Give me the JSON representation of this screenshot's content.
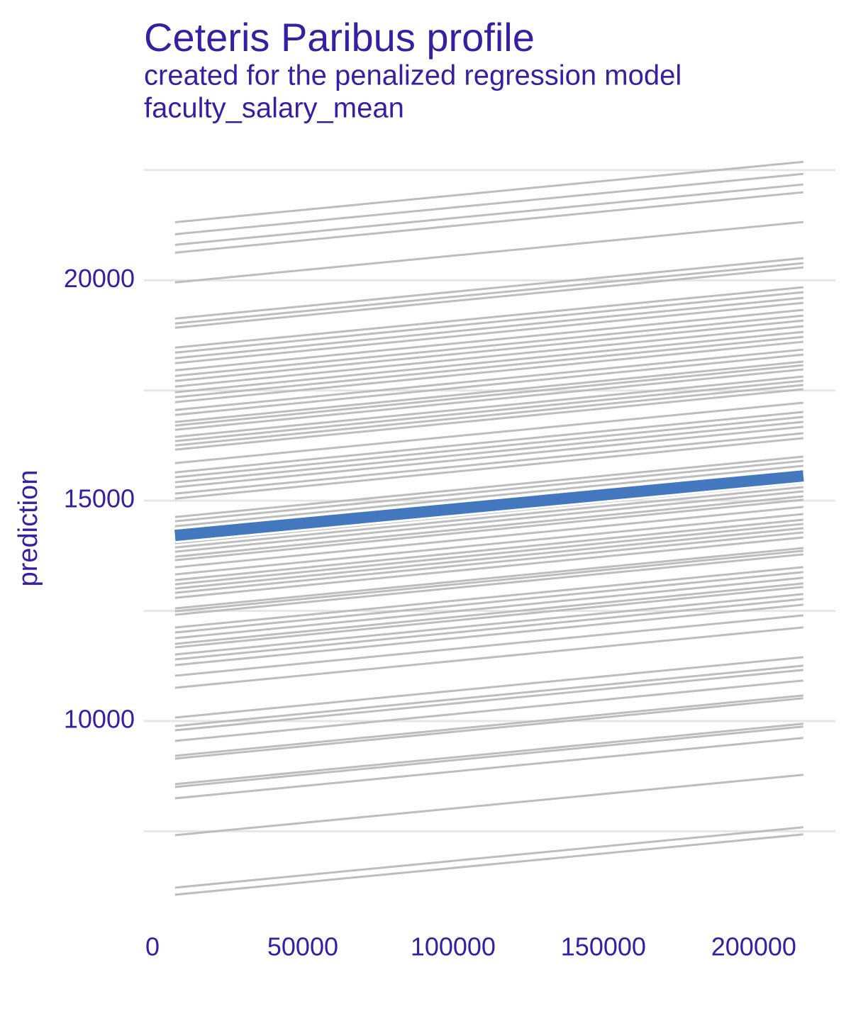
{
  "chart_data": {
    "type": "line",
    "title": "Ceteris Paribus profile",
    "subtitle": "created for the penalized regression model",
    "variable": "faculty_salary_mean",
    "ylabel": "prediction",
    "x": [
      7500,
      216500
    ],
    "xlim": [
      -2830,
      227170
    ],
    "xticks": [
      0,
      50000,
      100000,
      150000,
      200000
    ],
    "ylim": [
      5850,
      22740
    ],
    "yticks": [
      10000,
      15000,
      20000
    ],
    "yminor": [
      7500,
      12500,
      17500,
      22500
    ],
    "grid": true,
    "color": "#bdbdbd",
    "text_color": "#371ea3",
    "highlight": {
      "color": "#4378bf",
      "values": [
        14212,
        15563
      ]
    },
    "series": [
      {
        "values": [
          21318,
          22688
        ]
      },
      {
        "values": [
          21045,
          22415
        ]
      },
      {
        "values": [
          20804,
          22174
        ]
      },
      {
        "values": [
          20627,
          21997
        ]
      },
      {
        "values": [
          19952,
          21322
        ]
      },
      {
        "values": [
          19132,
          20502
        ]
      },
      {
        "values": [
          19019,
          20389
        ]
      },
      {
        "values": [
          18923,
          20293
        ]
      },
      {
        "values": [
          18473,
          19843
        ]
      },
      {
        "values": [
          18360,
          19730
        ]
      },
      {
        "values": [
          18232,
          19602
        ]
      },
      {
        "values": [
          18119,
          19489
        ]
      },
      {
        "values": [
          17958,
          19328
        ]
      },
      {
        "values": [
          17830,
          19200
        ]
      },
      {
        "values": [
          17717,
          19087
        ]
      },
      {
        "values": [
          17588,
          18958
        ]
      },
      {
        "values": [
          17460,
          18830
        ]
      },
      {
        "values": [
          17347,
          18717
        ]
      },
      {
        "values": [
          17235,
          18605
        ]
      },
      {
        "values": [
          17058,
          18428
        ]
      },
      {
        "values": [
          16945,
          18315
        ]
      },
      {
        "values": [
          16785,
          18155
        ]
      },
      {
        "values": [
          16704,
          18074
        ]
      },
      {
        "values": [
          16608,
          17978
        ]
      },
      {
        "values": [
          16447,
          17817
        ]
      },
      {
        "values": [
          16351,
          17721
        ]
      },
      {
        "values": [
          16254,
          17624
        ]
      },
      {
        "values": [
          16158,
          17528
        ]
      },
      {
        "values": [
          15852,
          17222
        ]
      },
      {
        "values": [
          15643,
          17013
        ]
      },
      {
        "values": [
          15531,
          16901
        ]
      },
      {
        "values": [
          15418,
          16788
        ]
      },
      {
        "values": [
          15306,
          16676
        ]
      },
      {
        "values": [
          15161,
          16531
        ]
      },
      {
        "values": [
          15048,
          16418
        ]
      },
      {
        "values": [
          14630,
          16000
        ]
      },
      {
        "values": [
          14534,
          15904
        ]
      },
      {
        "values": [
          14421,
          15791
        ]
      },
      {
        "values": [
          14293,
          15663
        ]
      },
      {
        "values": [
          14132,
          15502
        ]
      },
      {
        "values": [
          14035,
          15405
        ]
      },
      {
        "values": [
          13939,
          15309
        ]
      },
      {
        "values": [
          13842,
          15212
        ]
      },
      {
        "values": [
          13730,
          15100
        ]
      },
      {
        "values": [
          13650,
          15020
        ]
      },
      {
        "values": [
          13489,
          14859
        ]
      },
      {
        "values": [
          13328,
          14698
        ]
      },
      {
        "values": [
          13199,
          14569
        ]
      },
      {
        "values": [
          13103,
          14473
        ]
      },
      {
        "values": [
          13006,
          14376
        ]
      },
      {
        "values": [
          12910,
          14280
        ]
      },
      {
        "values": [
          12797,
          14167
        ]
      },
      {
        "values": [
          12556,
          13926
        ]
      },
      {
        "values": [
          12492,
          13862
        ]
      },
      {
        "values": [
          12412,
          13782
        ]
      },
      {
        "values": [
          12122,
          13492
        ]
      },
      {
        "values": [
          12010,
          13380
        ]
      },
      {
        "values": [
          11881,
          13251
        ]
      },
      {
        "values": [
          11752,
          13122
        ]
      },
      {
        "values": [
          11672,
          13042
        ]
      },
      {
        "values": [
          11511,
          12881
        ]
      },
      {
        "values": [
          11399,
          12769
        ]
      },
      {
        "values": [
          11270,
          12640
        ]
      },
      {
        "values": [
          11029,
          12399
        ]
      },
      {
        "values": [
          10756,
          12126
        ]
      },
      {
        "values": [
          10080,
          11450
        ]
      },
      {
        "values": [
          9887,
          11257
        ]
      },
      {
        "values": [
          9791,
          11161
        ]
      },
      {
        "values": [
          9550,
          10920
        ]
      },
      {
        "values": [
          9212,
          10582
        ]
      },
      {
        "values": [
          9148,
          10518
        ]
      },
      {
        "values": [
          8569,
          9939
        ]
      },
      {
        "values": [
          8505,
          9875
        ]
      },
      {
        "values": [
          8248,
          9618
        ]
      },
      {
        "values": [
          7412,
          8782
        ]
      },
      {
        "values": [
          6222,
          7592
        ]
      },
      {
        "values": [
          6061,
          7431
        ]
      }
    ]
  }
}
